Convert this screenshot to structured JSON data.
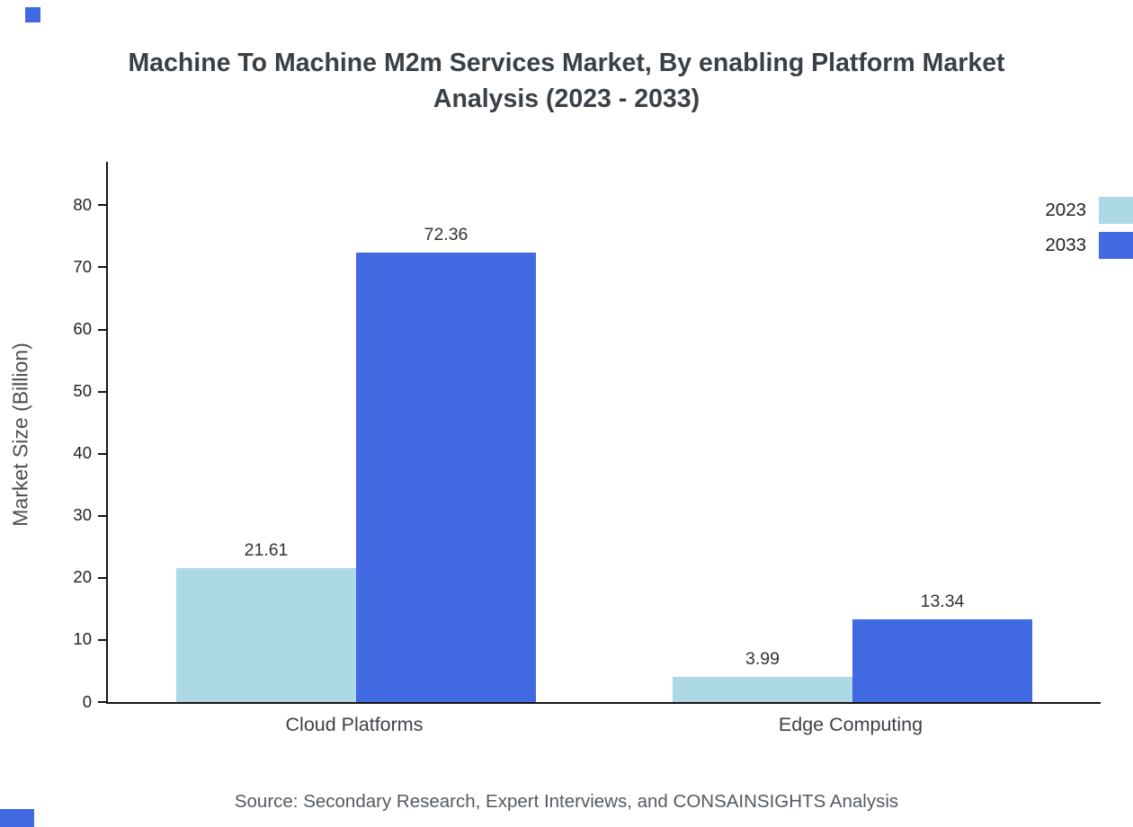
{
  "title": "Machine To Machine M2m Services Market, By enabling Platform Market Analysis (2023 - 2033)",
  "source": "Source: Secondary Research, Expert Interviews, and CONSAINSIGHTS Analysis",
  "chart_data": {
    "type": "bar",
    "title": "Machine To Machine M2m Services Market, By enabling Platform Market Analysis (2023 - 2033)",
    "categories": [
      "Cloud Platforms",
      "Edge Computing"
    ],
    "series": [
      {
        "name": "2023",
        "color": "#ADD8E6",
        "values": [
          21.61,
          3.99
        ]
      },
      {
        "name": "2033",
        "color": "#4169E1",
        "values": [
          72.36,
          13.34
        ]
      }
    ],
    "xlabel": "",
    "ylabel": "Market Size (Billion)",
    "ylim": [
      0,
      87
    ],
    "yticks": [
      0,
      10,
      20,
      30,
      40,
      50,
      60,
      70,
      80
    ],
    "grid": false,
    "legend_position": "top-right",
    "value_label_decimals": 2,
    "source": "Source: Secondary Research, Expert Interviews, and CONSAINSIGHTS Analysis"
  }
}
